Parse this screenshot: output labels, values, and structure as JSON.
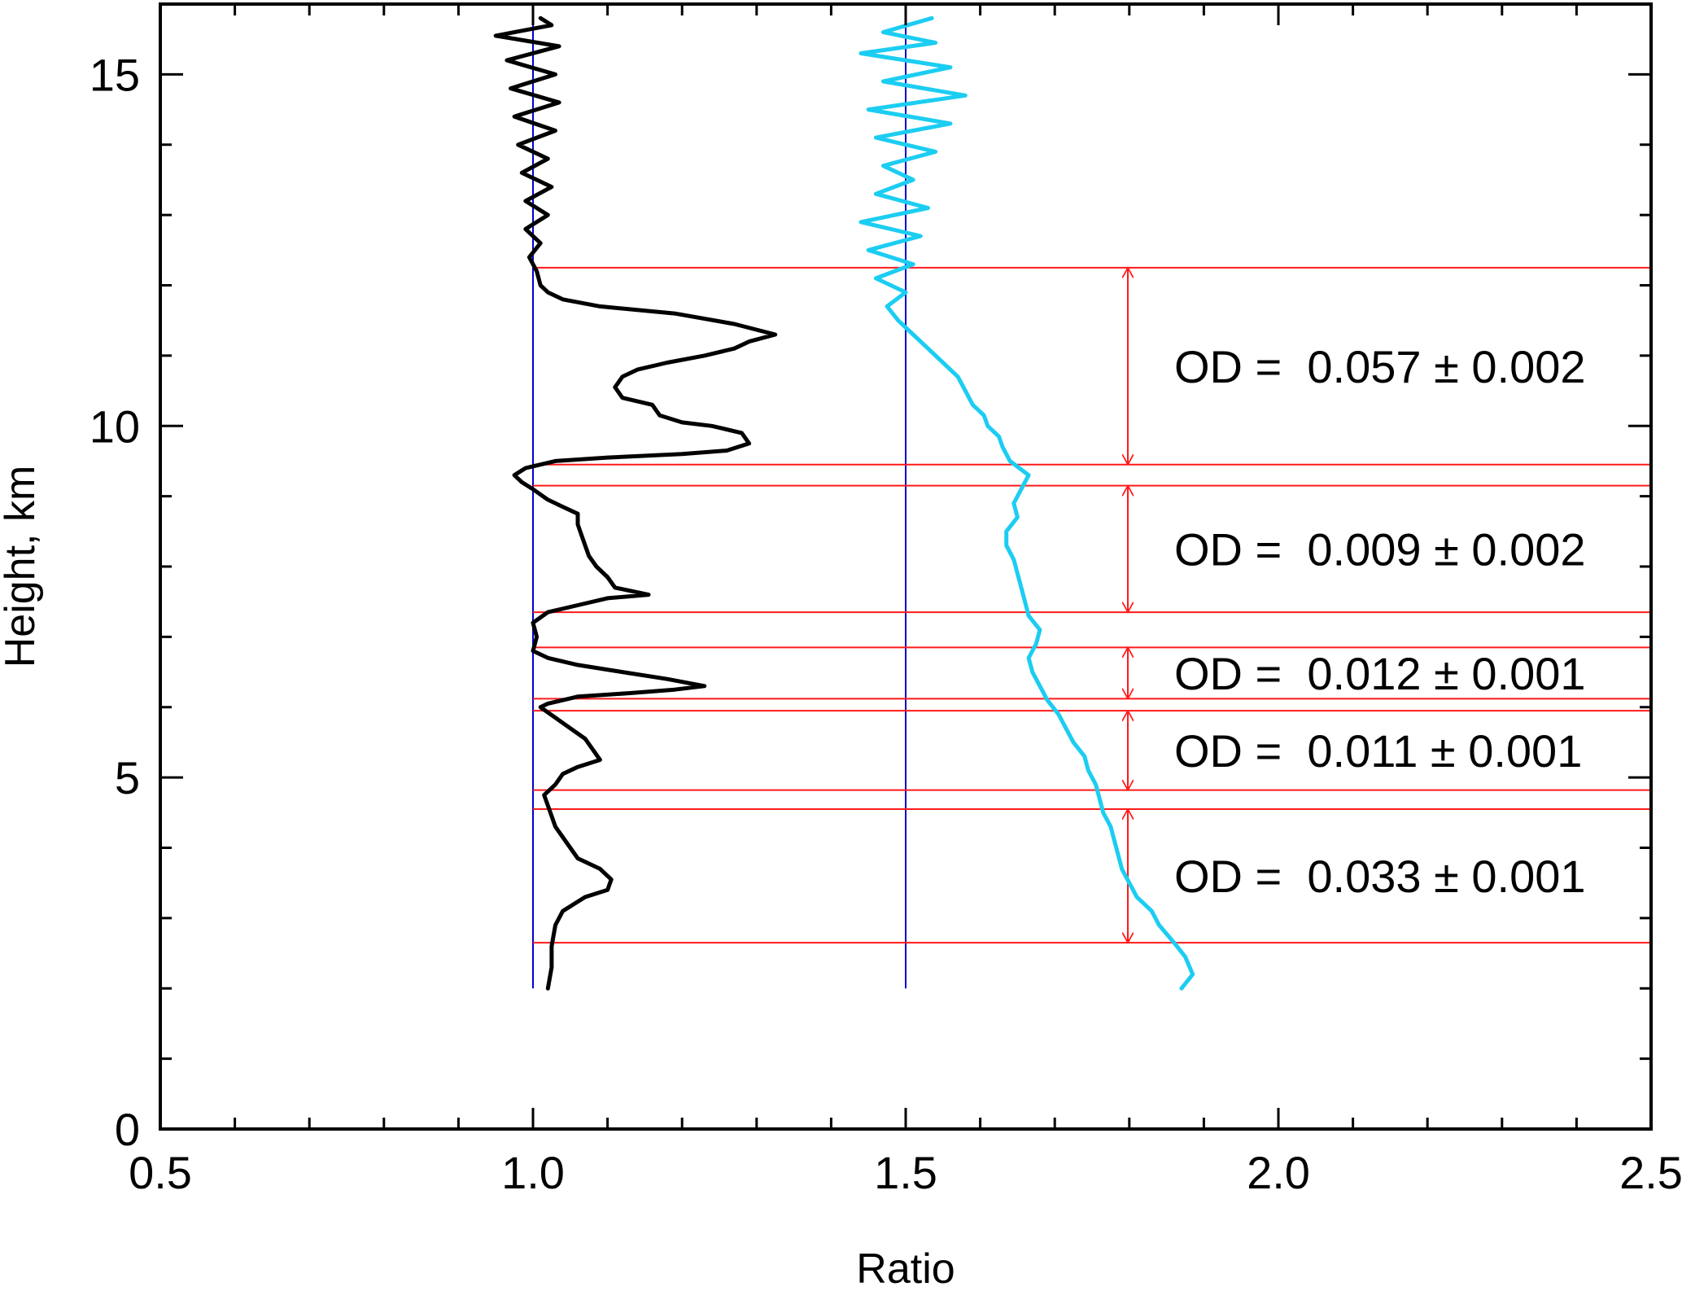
{
  "chart_data": {
    "type": "line",
    "title": "",
    "xlabel": "Ratio",
    "ylabel": "Height, km",
    "xlim": [
      0.5,
      2.5
    ],
    "ylim": [
      0,
      16
    ],
    "x_ticks": [
      "0.5",
      "1.0",
      "1.5",
      "2.0",
      "2.5"
    ],
    "y_ticks": [
      "0",
      "5",
      "10",
      "15"
    ],
    "grid": false,
    "colors": {
      "series_black": "#000000",
      "series_cyan": "#1ccdf2",
      "reference_lines": "#0000cc",
      "layer_markers": "#ff1a1a"
    },
    "reference_lines_x": [
      1.0,
      1.5
    ],
    "series": [
      {
        "color": "black",
        "points": [
          [
            1.02,
            2.0
          ],
          [
            1.025,
            2.3
          ],
          [
            1.025,
            2.6
          ],
          [
            1.03,
            2.9
          ],
          [
            1.04,
            3.1
          ],
          [
            1.07,
            3.3
          ],
          [
            1.1,
            3.4
          ],
          [
            1.105,
            3.55
          ],
          [
            1.09,
            3.7
          ],
          [
            1.06,
            3.85
          ],
          [
            1.05,
            4.0
          ],
          [
            1.04,
            4.15
          ],
          [
            1.03,
            4.3
          ],
          [
            1.025,
            4.45
          ],
          [
            1.02,
            4.6
          ],
          [
            1.015,
            4.75
          ],
          [
            1.03,
            4.9
          ],
          [
            1.04,
            5.05
          ],
          [
            1.06,
            5.15
          ],
          [
            1.09,
            5.25
          ],
          [
            1.08,
            5.4
          ],
          [
            1.07,
            5.55
          ],
          [
            1.05,
            5.7
          ],
          [
            1.03,
            5.85
          ],
          [
            1.01,
            6.0
          ],
          [
            1.02,
            6.05
          ],
          [
            1.06,
            6.15
          ],
          [
            1.13,
            6.2
          ],
          [
            1.19,
            6.25
          ],
          [
            1.23,
            6.3
          ],
          [
            1.18,
            6.4
          ],
          [
            1.12,
            6.5
          ],
          [
            1.06,
            6.6
          ],
          [
            1.02,
            6.7
          ],
          [
            1.0,
            6.8
          ],
          [
            1.005,
            7.0
          ],
          [
            1.0,
            7.2
          ],
          [
            1.02,
            7.35
          ],
          [
            1.06,
            7.45
          ],
          [
            1.1,
            7.55
          ],
          [
            1.155,
            7.6
          ],
          [
            1.11,
            7.7
          ],
          [
            1.1,
            7.85
          ],
          [
            1.085,
            8.0
          ],
          [
            1.075,
            8.15
          ],
          [
            1.07,
            8.3
          ],
          [
            1.065,
            8.45
          ],
          [
            1.06,
            8.6
          ],
          [
            1.06,
            8.75
          ],
          [
            1.04,
            8.85
          ],
          [
            1.02,
            8.95
          ],
          [
            1.0,
            9.1
          ],
          [
            0.985,
            9.2
          ],
          [
            0.975,
            9.3
          ],
          [
            0.99,
            9.4
          ],
          [
            1.03,
            9.5
          ],
          [
            1.1,
            9.55
          ],
          [
            1.2,
            9.6
          ],
          [
            1.26,
            9.65
          ],
          [
            1.29,
            9.75
          ],
          [
            1.28,
            9.9
          ],
          [
            1.24,
            10.0
          ],
          [
            1.2,
            10.05
          ],
          [
            1.17,
            10.15
          ],
          [
            1.16,
            10.3
          ],
          [
            1.12,
            10.4
          ],
          [
            1.11,
            10.55
          ],
          [
            1.12,
            10.7
          ],
          [
            1.14,
            10.8
          ],
          [
            1.18,
            10.9
          ],
          [
            1.23,
            11.0
          ],
          [
            1.27,
            11.1
          ],
          [
            1.29,
            11.2
          ],
          [
            1.325,
            11.3
          ],
          [
            1.27,
            11.45
          ],
          [
            1.19,
            11.6
          ],
          [
            1.09,
            11.7
          ],
          [
            1.04,
            11.8
          ],
          [
            1.02,
            11.9
          ],
          [
            1.01,
            12.0
          ],
          [
            1.005,
            12.2
          ],
          [
            0.995,
            12.4
          ],
          [
            1.01,
            12.6
          ],
          [
            0.99,
            12.8
          ],
          [
            1.02,
            13.0
          ],
          [
            0.99,
            13.2
          ],
          [
            1.025,
            13.4
          ],
          [
            0.985,
            13.6
          ],
          [
            1.02,
            13.8
          ],
          [
            0.98,
            14.0
          ],
          [
            1.03,
            14.2
          ],
          [
            0.975,
            14.4
          ],
          [
            1.035,
            14.6
          ],
          [
            0.97,
            14.8
          ],
          [
            1.03,
            15.0
          ],
          [
            0.965,
            15.2
          ],
          [
            1.035,
            15.4
          ],
          [
            0.95,
            15.55
          ],
          [
            1.025,
            15.7
          ],
          [
            1.01,
            15.8
          ]
        ]
      },
      {
        "color": "cyan",
        "points": [
          [
            1.87,
            2.0
          ],
          [
            1.885,
            2.2
          ],
          [
            1.875,
            2.45
          ],
          [
            1.86,
            2.65
          ],
          [
            1.84,
            2.9
          ],
          [
            1.83,
            3.1
          ],
          [
            1.81,
            3.3
          ],
          [
            1.8,
            3.5
          ],
          [
            1.79,
            3.7
          ],
          [
            1.785,
            3.9
          ],
          [
            1.78,
            4.1
          ],
          [
            1.775,
            4.3
          ],
          [
            1.765,
            4.5
          ],
          [
            1.76,
            4.7
          ],
          [
            1.755,
            4.9
          ],
          [
            1.745,
            5.1
          ],
          [
            1.74,
            5.3
          ],
          [
            1.725,
            5.5
          ],
          [
            1.715,
            5.7
          ],
          [
            1.705,
            5.9
          ],
          [
            1.69,
            6.1
          ],
          [
            1.68,
            6.3
          ],
          [
            1.67,
            6.5
          ],
          [
            1.665,
            6.7
          ],
          [
            1.675,
            6.9
          ],
          [
            1.68,
            7.1
          ],
          [
            1.665,
            7.3
          ],
          [
            1.66,
            7.5
          ],
          [
            1.655,
            7.7
          ],
          [
            1.65,
            7.9
          ],
          [
            1.645,
            8.1
          ],
          [
            1.635,
            8.3
          ],
          [
            1.635,
            8.5
          ],
          [
            1.65,
            8.7
          ],
          [
            1.645,
            8.9
          ],
          [
            1.655,
            9.1
          ],
          [
            1.665,
            9.3
          ],
          [
            1.64,
            9.5
          ],
          [
            1.63,
            9.7
          ],
          [
            1.625,
            9.85
          ],
          [
            1.61,
            10.0
          ],
          [
            1.605,
            10.15
          ],
          [
            1.59,
            10.3
          ],
          [
            1.58,
            10.5
          ],
          [
            1.57,
            10.7
          ],
          [
            1.55,
            10.9
          ],
          [
            1.53,
            11.1
          ],
          [
            1.51,
            11.3
          ],
          [
            1.49,
            11.5
          ],
          [
            1.475,
            11.7
          ],
          [
            1.5,
            11.9
          ],
          [
            1.46,
            12.1
          ],
          [
            1.51,
            12.3
          ],
          [
            1.45,
            12.5
          ],
          [
            1.52,
            12.7
          ],
          [
            1.44,
            12.9
          ],
          [
            1.53,
            13.1
          ],
          [
            1.46,
            13.3
          ],
          [
            1.51,
            13.5
          ],
          [
            1.47,
            13.7
          ],
          [
            1.54,
            13.9
          ],
          [
            1.46,
            14.1
          ],
          [
            1.56,
            14.3
          ],
          [
            1.45,
            14.5
          ],
          [
            1.58,
            14.7
          ],
          [
            1.47,
            14.9
          ],
          [
            1.56,
            15.1
          ],
          [
            1.44,
            15.3
          ],
          [
            1.54,
            15.45
          ],
          [
            1.47,
            15.6
          ],
          [
            1.535,
            15.8
          ]
        ]
      }
    ],
    "layers": [
      {
        "bottom": 9.45,
        "top": 12.25,
        "label": "OD =  0.057 ± 0.002"
      },
      {
        "bottom": 7.35,
        "top": 9.15,
        "label": "OD =  0.009 ± 0.002"
      },
      {
        "bottom": 6.12,
        "top": 6.85,
        "label": "OD =  0.012 ± 0.001"
      },
      {
        "bottom": 4.82,
        "top": 5.95,
        "label": "OD =  0.011 ± 0.001"
      },
      {
        "bottom": 2.65,
        "top": 4.55,
        "label": "OD =  0.033 ± 0.001"
      }
    ]
  }
}
